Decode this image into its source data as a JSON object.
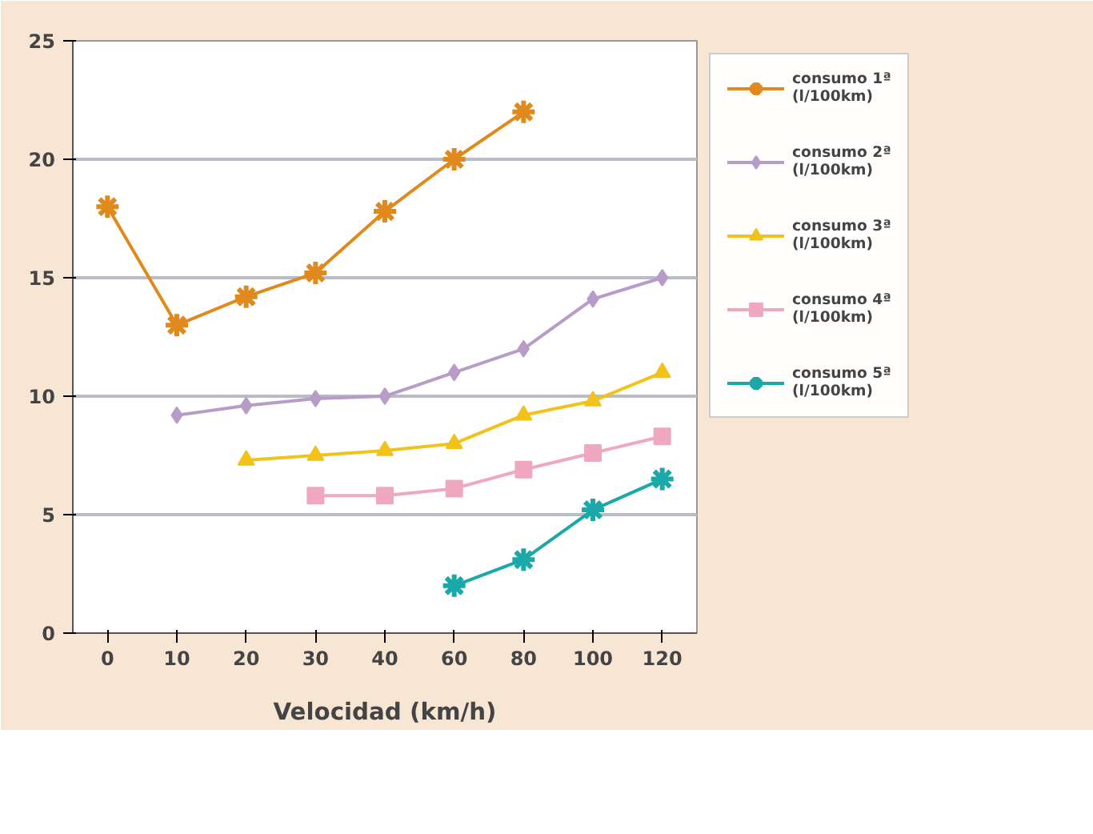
{
  "chart_data": {
    "type": "line",
    "xlabel": "Velocidad (km/h)",
    "categories": [
      "0",
      "10",
      "20",
      "30",
      "40",
      "60",
      "80",
      "100",
      "120"
    ],
    "ylim": [
      0,
      25
    ],
    "yticks": [
      0,
      5,
      10,
      15,
      20,
      25
    ],
    "grid": "y",
    "legend": "right",
    "series": [
      {
        "name": "consumo 1ª\n(l/100km)",
        "color": "#e08a1e",
        "marker": "cross",
        "values": [
          18,
          13,
          14.2,
          15.2,
          17.8,
          20,
          22,
          null,
          null
        ]
      },
      {
        "name": "consumo 2ª\n(l/100km)",
        "color": "#b89cc8",
        "marker": "diamond",
        "values": [
          null,
          9.2,
          9.6,
          9.9,
          10,
          11,
          12,
          14.1,
          15
        ]
      },
      {
        "name": "consumo 3ª\n(l/100km)",
        "color": "#f2c21b",
        "marker": "triangle",
        "values": [
          null,
          null,
          7.3,
          7.5,
          7.7,
          8,
          9.2,
          9.8,
          11
        ]
      },
      {
        "name": "consumo 4ª\n(l/100km)",
        "color": "#f0a8c0",
        "marker": "square",
        "values": [
          null,
          null,
          null,
          5.8,
          5.8,
          6.1,
          6.9,
          7.6,
          8.3
        ]
      },
      {
        "name": "consumo 5ª\n(l/100km)",
        "color": "#1aa8a8",
        "marker": "cross",
        "values": [
          null,
          null,
          null,
          null,
          null,
          2,
          3.1,
          5.2,
          6.5
        ]
      }
    ]
  }
}
